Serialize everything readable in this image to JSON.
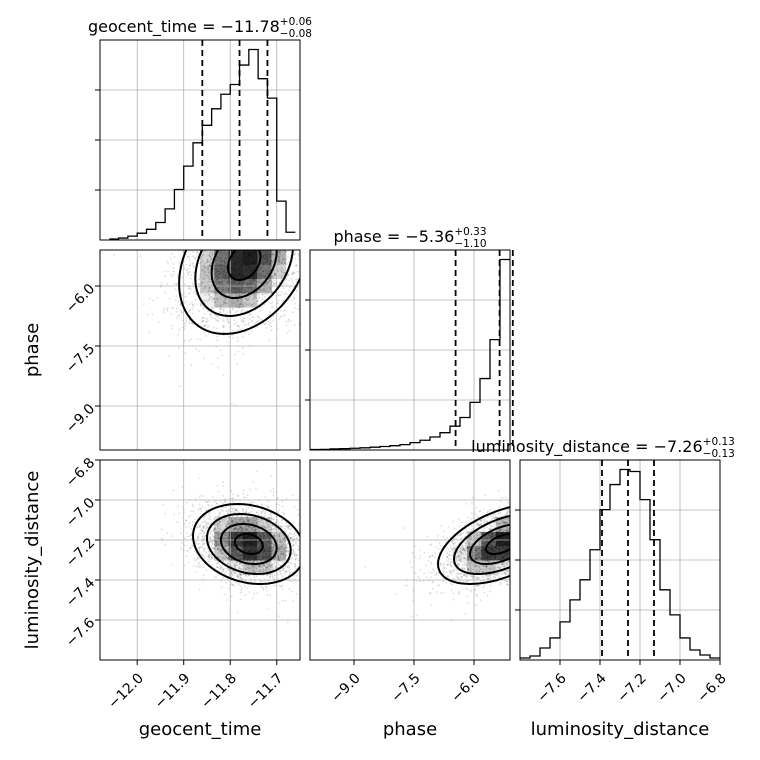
{
  "chart_data": {
    "type": "corner",
    "parameters": [
      "geocent_time",
      "phase",
      "luminosity_distance"
    ],
    "axes": {
      "geocent_time": {
        "range": [
          -12.08,
          -11.65
        ],
        "ticks": [
          -12.0,
          -11.9,
          -11.8,
          -11.7
        ],
        "tick_labels": [
          "−12.0",
          "−11.9",
          "−11.8",
          "−11.7"
        ]
      },
      "phase": {
        "range": [
          -10.1,
          -5.1
        ],
        "ticks": [
          -9.0,
          -7.5,
          -6.0
        ],
        "tick_labels": [
          "−9.0",
          "−7.5",
          "−6.0"
        ]
      },
      "luminosity_distance": {
        "range": [
          -7.8,
          -6.8
        ],
        "ticks": [
          -7.6,
          -7.4,
          -7.2,
          -7.0,
          -6.8
        ],
        "tick_labels": [
          "−7.6",
          "−7.4",
          "−7.2",
          "−7.0",
          "−6.8"
        ]
      }
    },
    "marginals": [
      {
        "parameter": "geocent_time",
        "title": {
          "main": "geocent_time = −11.78",
          "upper": "+0.06",
          "lower": "−0.08"
        },
        "median": -11.78,
        "quantiles": [
          -11.86,
          -11.78,
          -11.72
        ],
        "bin_edges": [
          -12.06,
          -12.04,
          -12.02,
          -12.0,
          -11.98,
          -11.96,
          -11.94,
          -11.92,
          -11.9,
          -11.88,
          -11.86,
          -11.84,
          -11.82,
          -11.8,
          -11.78,
          -11.76,
          -11.74,
          -11.72,
          -11.7,
          -11.68,
          -11.66
        ],
        "counts": [
          1,
          2,
          4,
          7,
          11,
          18,
          32,
          52,
          76,
          100,
          118,
          135,
          150,
          160,
          180,
          196,
          166,
          146,
          40,
          8
        ]
      },
      {
        "parameter": "phase",
        "title": {
          "main": "phase = −5.36",
          "upper": "+0.33",
          "lower": "−1.10"
        },
        "median": -5.36,
        "quantiles": [
          -6.46,
          -5.36,
          -5.03
        ],
        "bin_edges": [
          -10.1,
          -9.85,
          -9.6,
          -9.35,
          -9.1,
          -8.85,
          -8.6,
          -8.35,
          -8.1,
          -7.85,
          -7.6,
          -7.35,
          -7.1,
          -6.85,
          -6.6,
          -6.35,
          -6.1,
          -5.85,
          -5.6,
          -5.35,
          -5.1
        ],
        "counts": [
          2,
          3,
          5,
          6,
          8,
          10,
          13,
          16,
          20,
          25,
          34,
          45,
          60,
          80,
          110,
          150,
          220,
          330,
          510,
          880
        ]
      },
      {
        "parameter": "luminosity_distance",
        "title": {
          "main": "luminosity_distance = −7.26",
          "upper": "+0.13",
          "lower": "−0.13"
        },
        "median": -7.26,
        "quantiles": [
          -7.39,
          -7.26,
          -7.13
        ],
        "bin_edges": [
          -7.8,
          -7.75,
          -7.7,
          -7.65,
          -7.6,
          -7.55,
          -7.5,
          -7.45,
          -7.4,
          -7.35,
          -7.3,
          -7.25,
          -7.2,
          -7.15,
          -7.1,
          -7.05,
          -7.0,
          -6.95,
          -6.9,
          -6.85,
          -6.8
        ],
        "counts": [
          2,
          4,
          12,
          22,
          38,
          60,
          80,
          110,
          150,
          175,
          190,
          188,
          160,
          120,
          70,
          45,
          22,
          10,
          5,
          2
        ]
      }
    ],
    "joint": [
      {
        "x": "geocent_time",
        "y": "phase",
        "mean": [
          -11.77,
          -5.4
        ],
        "sd": [
          0.07,
          0.9
        ],
        "corr": 0.3
      },
      {
        "x": "geocent_time",
        "y": "luminosity_distance",
        "mean": [
          -11.76,
          -7.22
        ],
        "sd": [
          0.06,
          0.1
        ],
        "corr": -0.2
      },
      {
        "x": "phase",
        "y": "luminosity_distance",
        "mean": [
          -5.3,
          -7.22
        ],
        "sd": [
          0.8,
          0.1
        ],
        "corr": 0.5
      }
    ],
    "grid": true
  }
}
